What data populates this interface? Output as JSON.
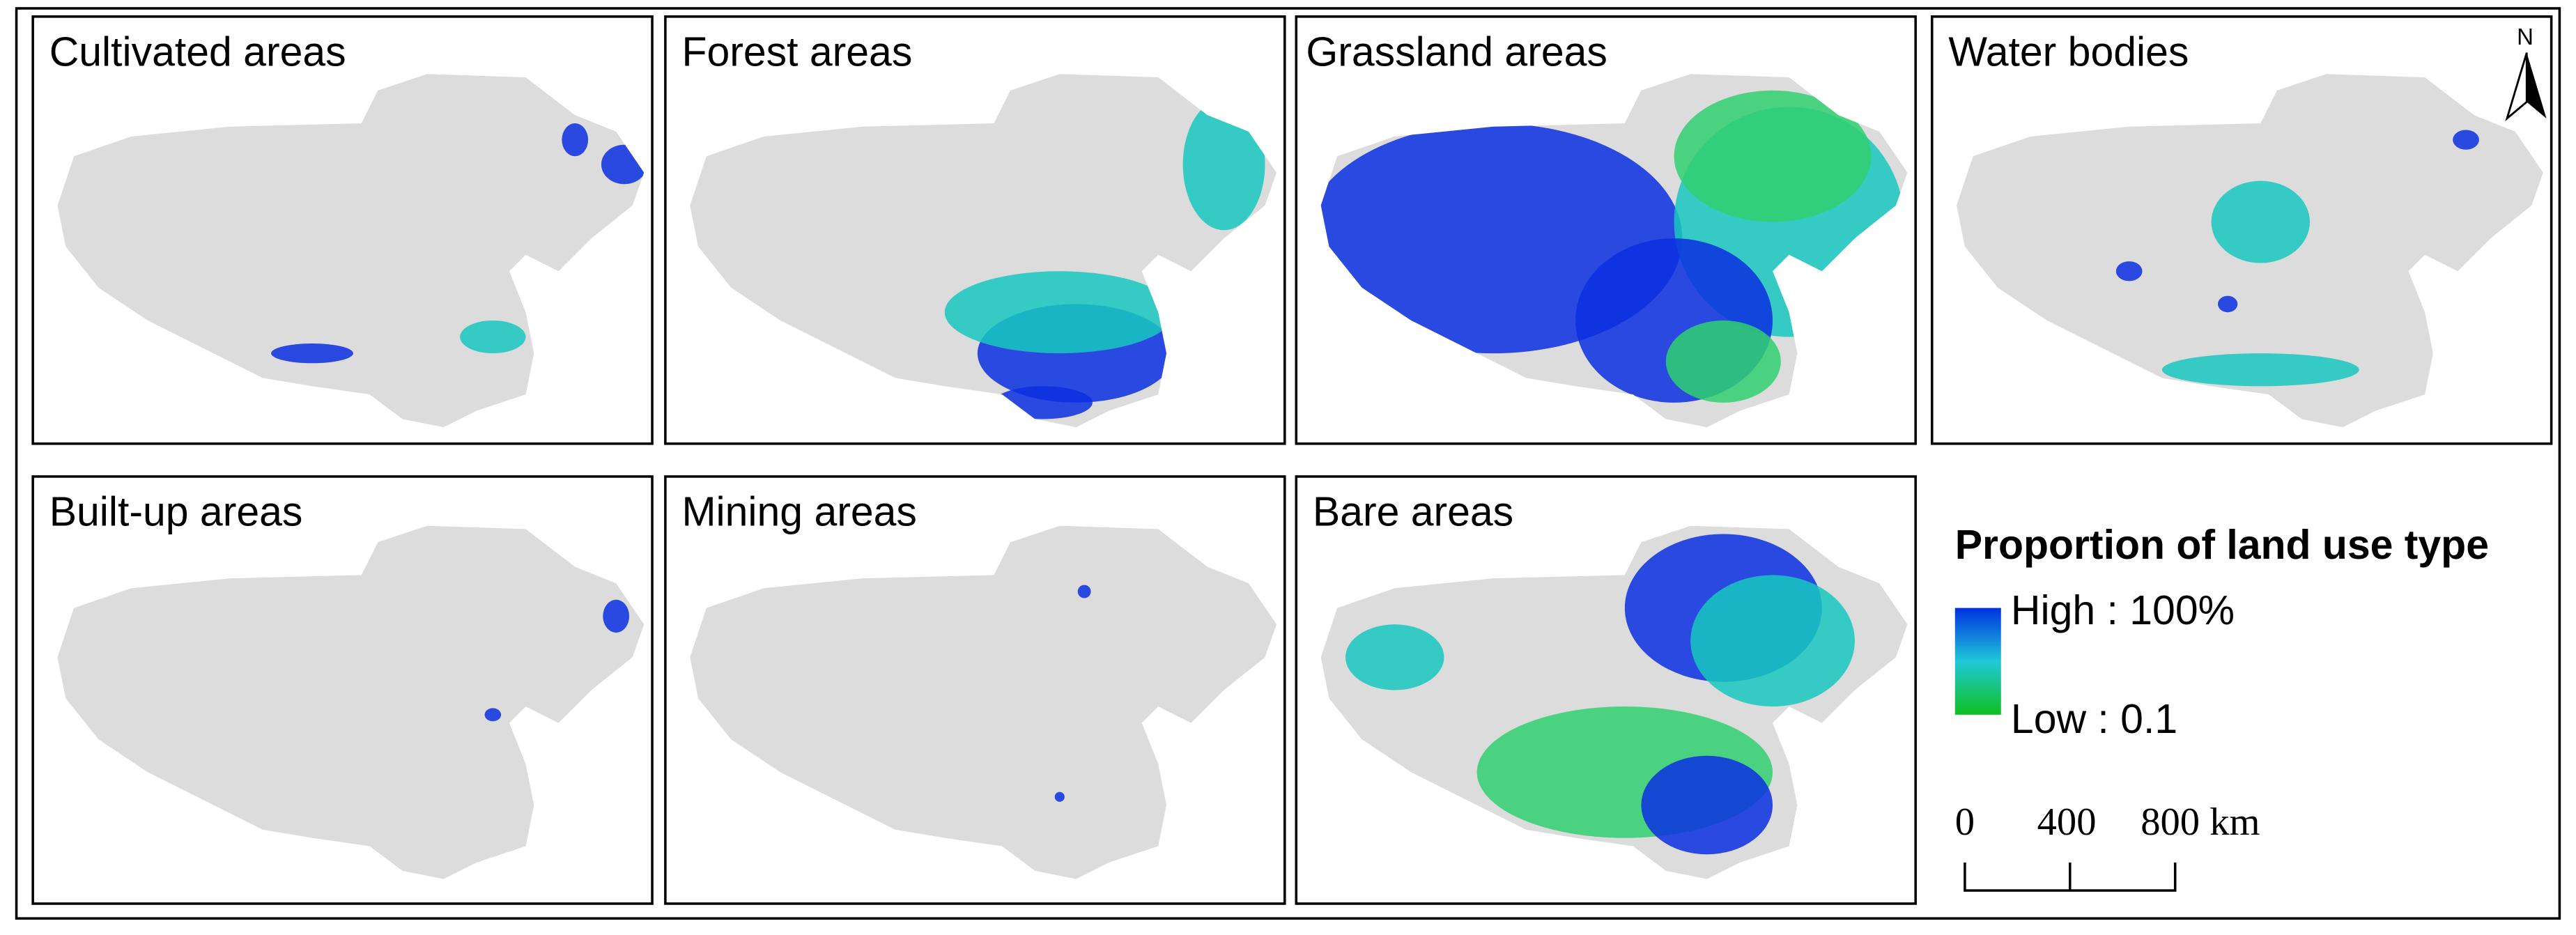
{
  "panels": [
    {
      "title": "Cultivated areas"
    },
    {
      "title": "Forest areas"
    },
    {
      "title": "Grassland areas"
    },
    {
      "title": "Water bodies"
    },
    {
      "title": "Built-up areas"
    },
    {
      "title": "Mining areas"
    },
    {
      "title": "Bare areas"
    }
  ],
  "legend": {
    "title": "Proportion of land use type",
    "high": "High : 100%",
    "low": "Low : 0.1"
  },
  "scale_bar": {
    "labels": [
      "0",
      "400",
      "800 km"
    ]
  },
  "north_arrow": "N"
}
